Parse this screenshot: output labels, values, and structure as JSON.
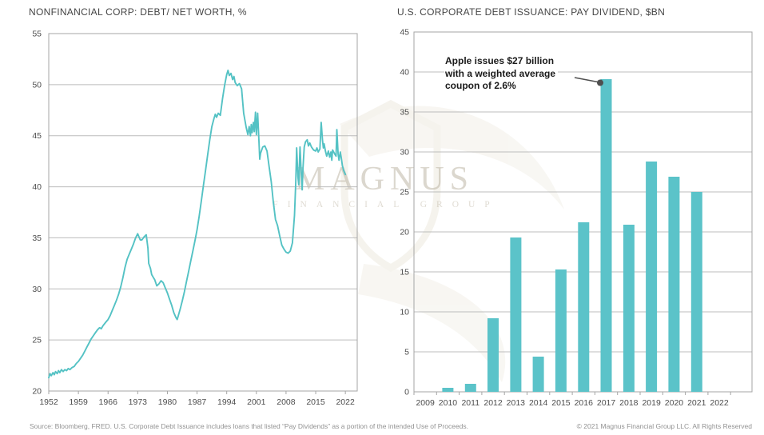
{
  "watermark": {
    "brand": "MAGNUS",
    "subbrand": "FINANCIAL GROUP"
  },
  "footer": {
    "source": "Source: Bloomberg, FRED. U.S. Corporate Debt Issuance includes loans that listed “Pay Dividends” as a portion of the intended Use of Proceeds.",
    "copyright": "© 2021 Magnus Financial Group LLC. All Rights Reserved"
  },
  "colors": {
    "accent_teal": "#54c2c4",
    "bar_teal": "#5bc3c9",
    "grid": "#bcbcbc",
    "border": "#a5a5a5",
    "axis_text": "#4d4d4d",
    "title_text": "#454545",
    "annotation_text": "#1a1a1a",
    "pointer": "#4f4f4f",
    "footer_text": "#929292",
    "watermark_text": "#b9b09e"
  },
  "chart_data": [
    {
      "type": "line",
      "title": "NONFINANCIAL CORP: DEBT/ NET WORTH, %",
      "xlabel": "",
      "ylabel": "",
      "ylim": [
        20,
        55
      ],
      "yticks": [
        20,
        25,
        30,
        35,
        40,
        45,
        50,
        55
      ],
      "xlim": [
        1952,
        2024.8
      ],
      "xticks": [
        1952,
        1959,
        1966,
        1973,
        1980,
        1987,
        1994,
        2001,
        2008,
        2015,
        2022
      ],
      "grid": "horizontal",
      "legend": "none",
      "line_color": "#54c2c4",
      "series": [
        {
          "name": "Nonfinancial corporate debt / net worth (%)",
          "points": [
            [
              1952,
              21.3
            ],
            [
              1952.3,
              21.7
            ],
            [
              1952.6,
              21.5
            ],
            [
              1953,
              21.8
            ],
            [
              1953.3,
              21.6
            ],
            [
              1953.6,
              21.9
            ],
            [
              1954,
              21.7
            ],
            [
              1954.3,
              22.0
            ],
            [
              1954.6,
              21.8
            ],
            [
              1955,
              22.1
            ],
            [
              1955.4,
              21.9
            ],
            [
              1955.8,
              22.1
            ],
            [
              1956.2,
              22.0
            ],
            [
              1956.6,
              22.2
            ],
            [
              1957,
              22.1
            ],
            [
              1957.5,
              22.3
            ],
            [
              1958,
              22.4
            ],
            [
              1958.5,
              22.7
            ],
            [
              1959,
              22.9
            ],
            [
              1959.5,
              23.2
            ],
            [
              1960,
              23.5
            ],
            [
              1960.5,
              23.9
            ],
            [
              1961,
              24.3
            ],
            [
              1961.5,
              24.7
            ],
            [
              1962,
              25.1
            ],
            [
              1962.5,
              25.4
            ],
            [
              1963,
              25.7
            ],
            [
              1963.5,
              26.0
            ],
            [
              1964,
              26.2
            ],
            [
              1964.4,
              26.1
            ],
            [
              1964.8,
              26.4
            ],
            [
              1965.4,
              26.7
            ],
            [
              1966,
              27.0
            ],
            [
              1966.5,
              27.4
            ],
            [
              1967,
              27.9
            ],
            [
              1967.5,
              28.4
            ],
            [
              1968,
              28.9
            ],
            [
              1968.5,
              29.5
            ],
            [
              1969,
              30.2
            ],
            [
              1969.5,
              31.1
            ],
            [
              1970,
              32.1
            ],
            [
              1970.5,
              32.9
            ],
            [
              1971,
              33.4
            ],
            [
              1971.5,
              33.9
            ],
            [
              1972,
              34.4
            ],
            [
              1972.5,
              35.0
            ],
            [
              1973,
              35.4
            ],
            [
              1973.3,
              35.1
            ],
            [
              1973.6,
              34.8
            ],
            [
              1974,
              34.8
            ],
            [
              1974.5,
              35.1
            ],
            [
              1975,
              35.3
            ],
            [
              1975.4,
              34.0
            ],
            [
              1975.6,
              32.5
            ],
            [
              1976,
              32.0
            ],
            [
              1976.3,
              31.4
            ],
            [
              1976.7,
              31.1
            ],
            [
              1977,
              30.9
            ],
            [
              1977.5,
              30.3
            ],
            [
              1978,
              30.5
            ],
            [
              1978.5,
              30.8
            ],
            [
              1979,
              30.6
            ],
            [
              1979.5,
              30.1
            ],
            [
              1980,
              29.6
            ],
            [
              1980.5,
              29.0
            ],
            [
              1981,
              28.4
            ],
            [
              1981.5,
              27.7
            ],
            [
              1982,
              27.2
            ],
            [
              1982.3,
              27.0
            ],
            [
              1982.6,
              27.4
            ],
            [
              1983,
              28.0
            ],
            [
              1983.5,
              28.8
            ],
            [
              1984,
              29.7
            ],
            [
              1984.5,
              30.7
            ],
            [
              1985,
              31.7
            ],
            [
              1985.5,
              32.7
            ],
            [
              1986,
              33.7
            ],
            [
              1986.5,
              34.7
            ],
            [
              1987,
              35.8
            ],
            [
              1987.5,
              37.1
            ],
            [
              1988,
              38.6
            ],
            [
              1988.5,
              40.1
            ],
            [
              1989,
              41.6
            ],
            [
              1989.5,
              43.1
            ],
            [
              1990,
              44.6
            ],
            [
              1990.5,
              45.9
            ],
            [
              1991,
              46.7
            ],
            [
              1991.3,
              47.1
            ],
            [
              1991.6,
              46.8
            ],
            [
              1992,
              47.2
            ],
            [
              1992.5,
              47.0
            ],
            [
              1993,
              48.6
            ],
            [
              1993.5,
              49.9
            ],
            [
              1994,
              51.0
            ],
            [
              1994.3,
              51.4
            ],
            [
              1994.6,
              50.9
            ],
            [
              1995,
              51.1
            ],
            [
              1995.4,
              50.5
            ],
            [
              1995.7,
              50.8
            ],
            [
              1996,
              50.2
            ],
            [
              1996.5,
              49.9
            ],
            [
              1997,
              50.1
            ],
            [
              1997.5,
              49.6
            ],
            [
              1998,
              47.2
            ],
            [
              1998.3,
              46.5
            ],
            [
              1998.6,
              45.8
            ],
            [
              1999,
              45.1
            ],
            [
              1999.3,
              45.9
            ],
            [
              1999.6,
              45.0
            ],
            [
              1999.8,
              46.1
            ],
            [
              2000,
              45.3
            ],
            [
              2000.3,
              46.3
            ],
            [
              2000.5,
              45.4
            ],
            [
              2000.8,
              47.3
            ],
            [
              2001,
              45.1
            ],
            [
              2001.3,
              47.2
            ],
            [
              2001.6,
              44.5
            ],
            [
              2001.8,
              42.7
            ],
            [
              2002,
              43.3
            ],
            [
              2002.5,
              43.9
            ],
            [
              2003,
              44.0
            ],
            [
              2003.5,
              43.5
            ],
            [
              2004,
              42.0
            ],
            [
              2004.5,
              40.5
            ],
            [
              2005,
              38.5
            ],
            [
              2005.5,
              36.8
            ],
            [
              2006,
              36.2
            ],
            [
              2006.5,
              35.2
            ],
            [
              2007,
              34.3
            ],
            [
              2007.5,
              33.9
            ],
            [
              2008,
              33.6
            ],
            [
              2008.5,
              33.5
            ],
            [
              2009,
              33.7
            ],
            [
              2009.5,
              34.5
            ],
            [
              2010,
              37.2
            ],
            [
              2010.3,
              40.5
            ],
            [
              2010.5,
              43.8
            ],
            [
              2010.8,
              41.0
            ],
            [
              2011,
              40.2
            ],
            [
              2011.3,
              43.9
            ],
            [
              2011.5,
              42.1
            ],
            [
              2011.8,
              39.7
            ],
            [
              2012,
              41.8
            ],
            [
              2012.3,
              43.9
            ],
            [
              2012.6,
              44.4
            ],
            [
              2013,
              44.6
            ],
            [
              2013.3,
              44.0
            ],
            [
              2013.6,
              44.3
            ],
            [
              2014,
              43.9
            ],
            [
              2014.5,
              43.6
            ],
            [
              2015,
              43.5
            ],
            [
              2015.3,
              43.8
            ],
            [
              2015.6,
              43.4
            ],
            [
              2016,
              43.7
            ],
            [
              2016.3,
              46.3
            ],
            [
              2016.6,
              44.6
            ],
            [
              2016.8,
              43.8
            ],
            [
              2017,
              44.2
            ],
            [
              2017.3,
              43.5
            ],
            [
              2017.6,
              43.0
            ],
            [
              2018,
              43.5
            ],
            [
              2018.3,
              42.9
            ],
            [
              2018.6,
              43.4
            ],
            [
              2018.8,
              42.6
            ],
            [
              2019,
              43.6
            ],
            [
              2019.5,
              43.2
            ],
            [
              2019.8,
              43.0
            ],
            [
              2020,
              45.6
            ],
            [
              2020.3,
              43.2
            ],
            [
              2020.5,
              42.6
            ],
            [
              2020.8,
              43.4
            ],
            [
              2021,
              42.9
            ],
            [
              2021.3,
              42.1
            ],
            [
              2021.6,
              41.6
            ],
            [
              2022,
              41.2
            ]
          ]
        }
      ]
    },
    {
      "type": "bar",
      "title": "U.S. CORPORATE DEBT ISSUANCE: PAY DIVIDEND, $BN",
      "xlabel": "",
      "ylabel": "",
      "ylim": [
        0,
        45
      ],
      "yticks": [
        0,
        5,
        10,
        15,
        20,
        25,
        30,
        35,
        40,
        45
      ],
      "grid": "horizontal",
      "legend": "none",
      "bar_color": "#5bc3c9",
      "categories": [
        "2009",
        "2010",
        "2011",
        "2012",
        "2013",
        "2014",
        "2015",
        "2016",
        "2017",
        "2018",
        "2019",
        "2020",
        "2021",
        "2022"
      ],
      "values": [
        0,
        0.5,
        1.0,
        9.2,
        19.3,
        4.4,
        15.3,
        21.2,
        39.1,
        20.9,
        28.8,
        26.9,
        25.0,
        0
      ],
      "annotation": {
        "line1": "Apple issues $27 billion",
        "line2": "with a weighted average",
        "line3": "coupon of 2.6%",
        "target_category": "2017",
        "target_value": 39.1
      }
    }
  ]
}
